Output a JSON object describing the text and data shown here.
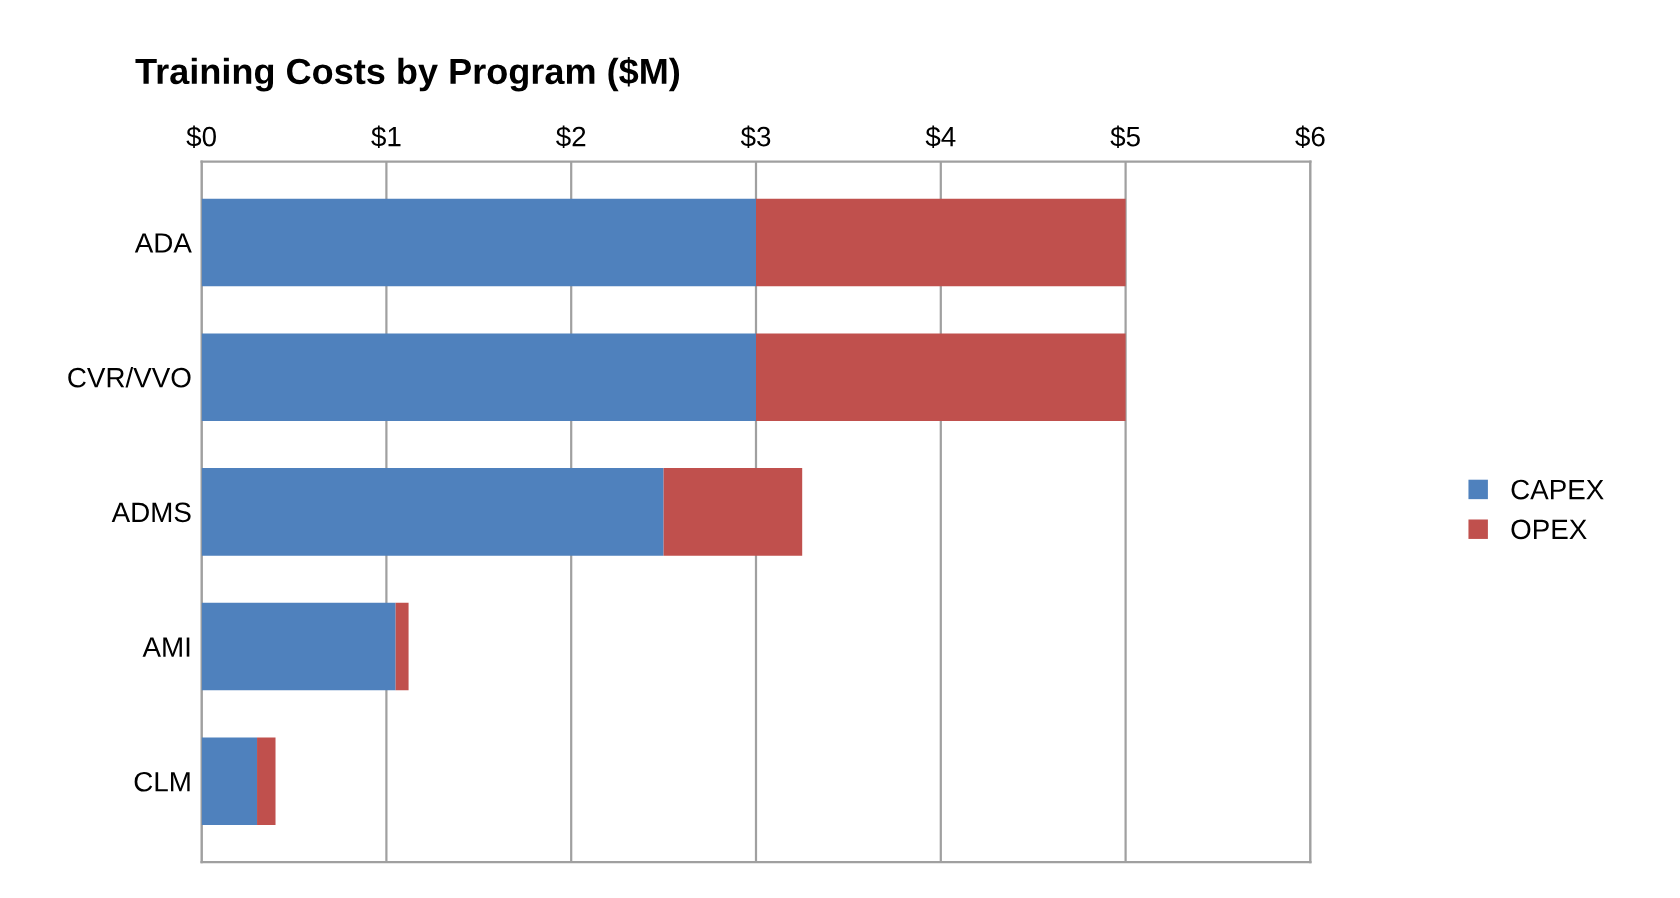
{
  "chart_data": {
    "type": "bar",
    "orientation": "horizontal",
    "stacked": true,
    "title": "Training Costs by Program ($M)",
    "categories": [
      "ADA",
      "CVR/VVO",
      "ADMS",
      "AMI",
      "CLM"
    ],
    "series": [
      {
        "name": "CAPEX",
        "color": "#4f81bd",
        "values": [
          3.0,
          3.0,
          2.5,
          1.05,
          0.3
        ]
      },
      {
        "name": "OPEX",
        "color": "#c0504d",
        "values": [
          2.0,
          2.0,
          0.75,
          0.07,
          0.1
        ]
      }
    ],
    "xlim": [
      0,
      6
    ],
    "xticks": [
      {
        "value": 0,
        "label": "$0"
      },
      {
        "value": 1,
        "label": "$1"
      },
      {
        "value": 2,
        "label": "$2"
      },
      {
        "value": 3,
        "label": "$3"
      },
      {
        "value": 4,
        "label": "$4"
      },
      {
        "value": 5,
        "label": "$5"
      },
      {
        "value": 6,
        "label": "$6"
      }
    ],
    "grid": "x",
    "legend": "right"
  }
}
